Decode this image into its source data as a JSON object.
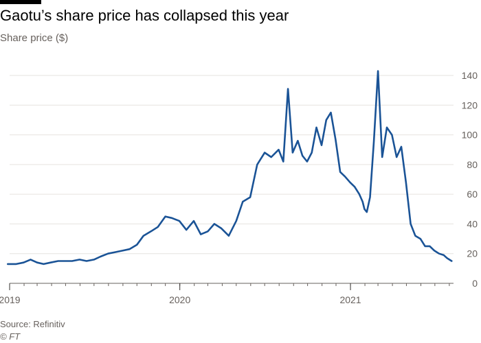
{
  "header": {
    "title": "Gaotu’s share price has collapsed this year",
    "subtitle": "Share price ($)"
  },
  "footer": {
    "source": "Source: Refinitiv",
    "credit": "© FT"
  },
  "chart_data": {
    "type": "line",
    "title": "Gaotu’s share price has collapsed this year",
    "ylabel": "Share price ($)",
    "xlabel": "",
    "ylim": [
      0,
      140
    ],
    "xlim": [
      "2019-01-01",
      "2021-08-10"
    ],
    "y_ticks": [
      0,
      20,
      40,
      60,
      80,
      100,
      120,
      140
    ],
    "x_ticks": [
      {
        "date": "2019-01-01",
        "label": "2019"
      },
      {
        "date": "2020-01-01",
        "label": "2020"
      },
      {
        "date": "2021-01-01",
        "label": "2021"
      }
    ],
    "grid": "horizontal",
    "y_axis_side": "right",
    "line_color": "#1a5396",
    "series": [
      {
        "x": [
          "2018-12-28",
          "2019-01-15",
          "2019-01-31",
          "2019-02-15",
          "2019-03-01",
          "2019-03-15",
          "2019-03-30",
          "2019-04-15",
          "2019-05-01",
          "2019-05-15",
          "2019-05-31",
          "2019-06-15",
          "2019-07-01",
          "2019-07-15",
          "2019-07-31",
          "2019-08-15",
          "2019-08-31",
          "2019-09-15",
          "2019-10-01",
          "2019-10-15",
          "2019-10-31",
          "2019-11-15",
          "2019-12-01",
          "2019-12-15",
          "2019-12-31",
          "2020-01-15",
          "2020-01-31",
          "2020-02-15",
          "2020-03-01",
          "2020-03-15",
          "2020-03-30",
          "2020-04-15",
          "2020-05-01",
          "2020-05-15",
          "2020-05-31",
          "2020-06-15",
          "2020-07-01",
          "2020-07-15",
          "2020-07-31",
          "2020-08-10",
          "2020-08-20",
          "2020-08-30",
          "2020-09-10",
          "2020-09-20",
          "2020-09-30",
          "2020-10-10",
          "2020-10-20",
          "2020-10-31",
          "2020-11-10",
          "2020-11-20",
          "2020-11-30",
          "2020-12-10",
          "2020-12-20",
          "2020-12-31",
          "2021-01-10",
          "2021-01-20",
          "2021-01-27",
          "2021-01-31",
          "2021-02-05",
          "2021-02-12",
          "2021-02-20",
          "2021-03-01",
          "2021-03-10",
          "2021-03-20",
          "2021-03-31",
          "2021-04-10",
          "2021-04-20",
          "2021-04-30",
          "2021-05-10",
          "2021-05-20",
          "2021-05-31",
          "2021-06-10",
          "2021-06-20",
          "2021-06-30",
          "2021-07-10",
          "2021-07-20",
          "2021-07-27",
          "2021-08-01",
          "2021-08-06"
        ],
        "y": [
          13,
          13,
          14,
          16,
          14,
          13,
          14,
          15,
          15,
          15,
          16,
          15,
          16,
          18,
          20,
          21,
          22,
          23,
          26,
          32,
          35,
          38,
          45,
          44,
          42,
          36,
          42,
          33,
          35,
          40,
          37,
          32,
          42,
          55,
          58,
          80,
          88,
          85,
          90,
          82,
          131,
          88,
          96,
          86,
          82,
          88,
          105,
          93,
          110,
          115,
          97,
          75,
          72,
          68,
          65,
          60,
          55,
          50,
          48,
          58,
          95,
          143,
          85,
          105,
          100,
          85,
          92,
          68,
          40,
          32,
          30,
          25,
          25,
          22,
          20,
          19,
          17,
          16,
          15
        ]
      }
    ]
  }
}
